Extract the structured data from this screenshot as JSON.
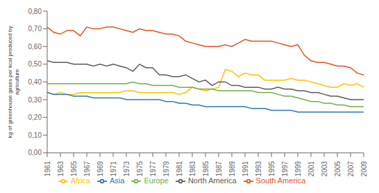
{
  "chart_data": {
    "type": "line",
    "ylabel": "kg of greenhouse gases per kcal produced by\nagriculture",
    "x": [
      1961,
      1962,
      1963,
      1964,
      1965,
      1966,
      1967,
      1968,
      1969,
      1970,
      1971,
      1972,
      1973,
      1974,
      1975,
      1976,
      1977,
      1978,
      1979,
      1980,
      1981,
      1982,
      1983,
      1984,
      1985,
      1986,
      1987,
      1988,
      1989,
      1990,
      1991,
      1992,
      1993,
      1994,
      1995,
      1996,
      1997,
      1998,
      1999,
      2000,
      2001,
      2002,
      2003,
      2004,
      2005,
      2006,
      2007,
      2008,
      2009
    ],
    "series": [
      {
        "name": "Africa",
        "color": "#FFC000",
        "values": [
          0.34,
          0.33,
          0.34,
          0.33,
          0.33,
          0.34,
          0.34,
          0.34,
          0.34,
          0.34,
          0.34,
          0.34,
          0.35,
          0.35,
          0.34,
          0.34,
          0.34,
          0.34,
          0.34,
          0.34,
          0.33,
          0.34,
          0.37,
          0.36,
          0.35,
          0.36,
          0.37,
          0.47,
          0.46,
          0.43,
          0.45,
          0.44,
          0.44,
          0.41,
          0.41,
          0.41,
          0.41,
          0.42,
          0.41,
          0.41,
          0.4,
          0.39,
          0.38,
          0.37,
          0.37,
          0.39,
          0.38,
          0.39,
          0.37
        ]
      },
      {
        "name": "South America",
        "color": "#E2511A",
        "values": [
          0.71,
          0.68,
          0.67,
          0.69,
          0.69,
          0.66,
          0.71,
          0.7,
          0.7,
          0.71,
          0.71,
          0.7,
          0.69,
          0.68,
          0.7,
          0.69,
          0.69,
          0.68,
          0.67,
          0.67,
          0.66,
          0.63,
          0.62,
          0.61,
          0.6,
          0.6,
          0.6,
          0.61,
          0.6,
          0.62,
          0.64,
          0.63,
          0.63,
          0.63,
          0.63,
          0.62,
          0.61,
          0.6,
          0.61,
          0.55,
          0.52,
          0.51,
          0.51,
          0.5,
          0.49,
          0.49,
          0.48,
          0.45,
          0.44
        ]
      },
      {
        "name": "North America",
        "color": "#595959",
        "values": [
          0.52,
          0.51,
          0.51,
          0.51,
          0.5,
          0.5,
          0.5,
          0.49,
          0.5,
          0.49,
          0.5,
          0.49,
          0.48,
          0.46,
          0.5,
          0.48,
          0.48,
          0.44,
          0.44,
          0.43,
          0.43,
          0.44,
          0.42,
          0.4,
          0.41,
          0.38,
          0.4,
          0.4,
          0.38,
          0.38,
          0.37,
          0.37,
          0.37,
          0.36,
          0.36,
          0.37,
          0.36,
          0.36,
          0.35,
          0.35,
          0.34,
          0.34,
          0.33,
          0.32,
          0.32,
          0.31,
          0.3,
          0.3,
          0.3
        ]
      },
      {
        "name": "Asia",
        "color": "#2E74B5",
        "values": [
          0.34,
          0.33,
          0.33,
          0.33,
          0.32,
          0.32,
          0.32,
          0.31,
          0.31,
          0.31,
          0.31,
          0.31,
          0.3,
          0.3,
          0.3,
          0.3,
          0.3,
          0.3,
          0.29,
          0.29,
          0.28,
          0.28,
          0.27,
          0.27,
          0.26,
          0.26,
          0.26,
          0.26,
          0.26,
          0.26,
          0.26,
          0.25,
          0.25,
          0.25,
          0.24,
          0.24,
          0.24,
          0.24,
          0.23,
          0.23,
          0.23,
          0.23,
          0.23,
          0.23,
          0.23,
          0.23,
          0.23,
          0.23,
          0.23
        ]
      },
      {
        "name": "Europe",
        "color": "#70AD47",
        "values": [
          0.39,
          0.39,
          0.39,
          0.39,
          0.39,
          0.39,
          0.39,
          0.39,
          0.39,
          0.39,
          0.39,
          0.39,
          0.39,
          0.4,
          0.39,
          0.39,
          0.38,
          0.38,
          0.38,
          0.38,
          0.37,
          0.37,
          0.37,
          0.36,
          0.36,
          0.36,
          0.35,
          0.35,
          0.35,
          0.35,
          0.35,
          0.35,
          0.34,
          0.34,
          0.34,
          0.33,
          0.32,
          0.32,
          0.31,
          0.3,
          0.29,
          0.29,
          0.28,
          0.28,
          0.27,
          0.27,
          0.26,
          0.26,
          0.26
        ]
      }
    ],
    "xlim": [
      1961,
      2009
    ],
    "xticks": [
      1961,
      1963,
      1965,
      1967,
      1969,
      1971,
      1973,
      1975,
      1977,
      1979,
      1981,
      1983,
      1985,
      1987,
      1989,
      1991,
      1993,
      1995,
      1997,
      1999,
      2001,
      2003,
      2005,
      2007,
      2009
    ],
    "ylim": [
      0.0,
      0.8
    ],
    "yticks": [
      {
        "value": 0.0,
        "label": "0,00"
      },
      {
        "value": 0.1,
        "label": "0,10"
      },
      {
        "value": 0.2,
        "label": "0,20"
      },
      {
        "value": 0.3,
        "label": "0,30"
      },
      {
        "value": 0.4,
        "label": "0,40"
      },
      {
        "value": 0.5,
        "label": "0,50"
      },
      {
        "value": 0.6,
        "label": "0,60"
      },
      {
        "value": 0.7,
        "label": "0,70"
      },
      {
        "value": 0.8,
        "label": "0,80"
      }
    ],
    "grid": false,
    "legend": "bottom"
  }
}
